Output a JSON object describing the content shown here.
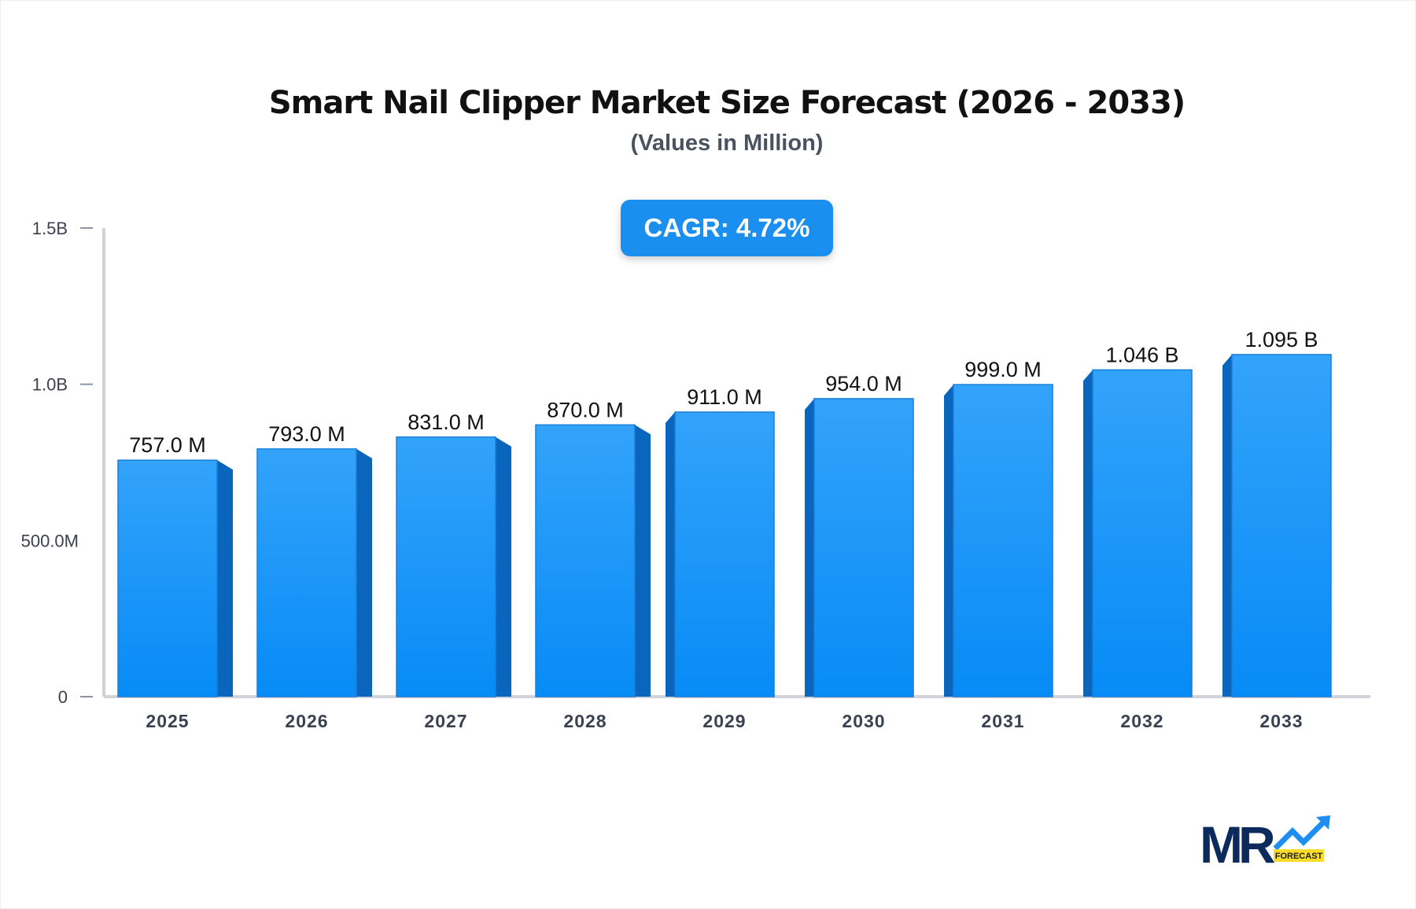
{
  "chart_data": {
    "type": "bar",
    "title": "Smart Nail Clipper Market Size Forecast (2026 - 2033)",
    "subtitle": "(Values in Million)",
    "annotation": "CAGR: 4.72%",
    "categories": [
      "2025",
      "2026",
      "2027",
      "2028",
      "2029",
      "2030",
      "2031",
      "2032",
      "2033"
    ],
    "values": [
      757.0,
      793.0,
      831.0,
      870.0,
      911.0,
      954.0,
      999.0,
      1046,
      1095
    ],
    "data_labels": [
      "757.0 M",
      "793.0 M",
      "831.0 M",
      "870.0 M",
      "911.0 M",
      "954.0 M",
      "999.0 M",
      "1.046 B",
      "1.095 B"
    ],
    "ylim": [
      0,
      1500
    ],
    "yticks": [
      0,
      500,
      1000,
      1500
    ],
    "ytick_labels": [
      "0",
      "500.0M",
      "1.0B",
      "1.5B"
    ],
    "xlabel": "",
    "ylabel": "",
    "grid": false,
    "colors": {
      "bar_front": "#1a8ff0",
      "bar_top": "#35a6fb",
      "bar_side": "#0a66bd",
      "cagr_bg": "#1a8ff0"
    }
  },
  "logo": {
    "text": "MR",
    "tag": "FORECAST"
  }
}
